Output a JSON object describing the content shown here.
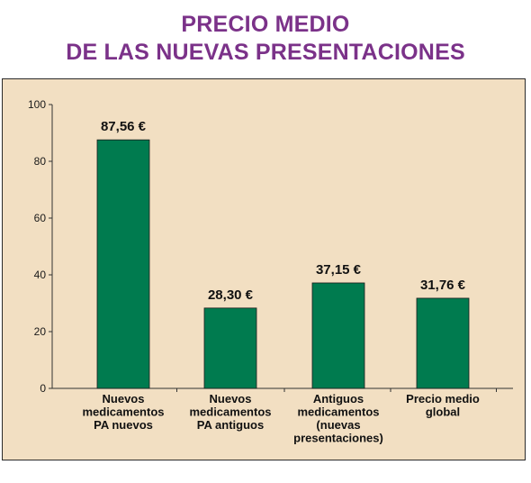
{
  "title": {
    "line1": "PRECIO MEDIO",
    "line2": "DE LAS NUEVAS PRESENTACIONES"
  },
  "colors": {
    "title": "#7b3289",
    "bar": "#007b4f",
    "panel": "#f2dfc2"
  },
  "chart_data": {
    "type": "bar",
    "title": "PRECIO MEDIO DE LAS NUEVAS PRESENTACIONES",
    "categories": [
      [
        "Nuevos",
        "medicamentos",
        "PA nuevos"
      ],
      [
        "Nuevos",
        "medicamentos",
        "PA antiguos"
      ],
      [
        "Antiguos",
        "medicamentos",
        "(nuevas",
        "presentaciones)"
      ],
      [
        "Precio medio",
        "global"
      ]
    ],
    "values": [
      87.56,
      28.3,
      37.15,
      31.76
    ],
    "value_labels": [
      "87,56 €",
      "28,30 €",
      "37,15 €",
      "31,76 €"
    ],
    "yticks": [
      0,
      20,
      40,
      60,
      80,
      100
    ],
    "ylim": [
      0,
      100
    ],
    "grid": false,
    "xlabel": "",
    "ylabel": ""
  }
}
